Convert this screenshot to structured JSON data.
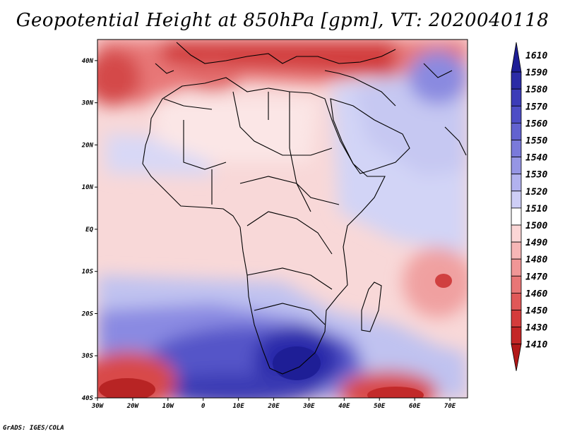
{
  "title": "Geopotential Height at 850hPa [gpm], VT: 2020040118",
  "credit": "GrADS: IGES/COLA",
  "map": {
    "lon_range": [
      -30,
      75
    ],
    "lat_range": [
      -40,
      45
    ],
    "lon_ticks": [
      {
        "value": -30,
        "label": "30W"
      },
      {
        "value": -20,
        "label": "20W"
      },
      {
        "value": -10,
        "label": "10W"
      },
      {
        "value": 0,
        "label": "0"
      },
      {
        "value": 10,
        "label": "10E"
      },
      {
        "value": 20,
        "label": "20E"
      },
      {
        "value": 30,
        "label": "30E"
      },
      {
        "value": 40,
        "label": "40E"
      },
      {
        "value": 50,
        "label": "50E"
      },
      {
        "value": 60,
        "label": "60E"
      },
      {
        "value": 70,
        "label": "70E"
      }
    ],
    "lat_ticks": [
      {
        "value": 40,
        "label": "40N"
      },
      {
        "value": 30,
        "label": "30N"
      },
      {
        "value": 20,
        "label": "20N"
      },
      {
        "value": 10,
        "label": "10N"
      },
      {
        "value": 0,
        "label": "EQ"
      },
      {
        "value": -10,
        "label": "10S"
      },
      {
        "value": -20,
        "label": "20S"
      },
      {
        "value": -30,
        "label": "30S"
      },
      {
        "value": -40,
        "label": "40S"
      }
    ]
  },
  "legend": {
    "levels": [
      "1610",
      "1590",
      "1580",
      "1570",
      "1560",
      "1550",
      "1540",
      "1530",
      "1520",
      "1510",
      "1500",
      "1490",
      "1480",
      "1470",
      "1460",
      "1450",
      "1430",
      "1410"
    ],
    "colors": [
      "#1e1e96",
      "#2c2ca6",
      "#3c3cb8",
      "#4e4ec6",
      "#6262d0",
      "#7a7ada",
      "#9696e4",
      "#b2b2ee",
      "#ceceF6",
      "#ffffff",
      "#fbd6d6",
      "#f6b6b6",
      "#f09696",
      "#e87676",
      "#e05858",
      "#d43c3c",
      "#c42626",
      "#b21818"
    ]
  }
}
